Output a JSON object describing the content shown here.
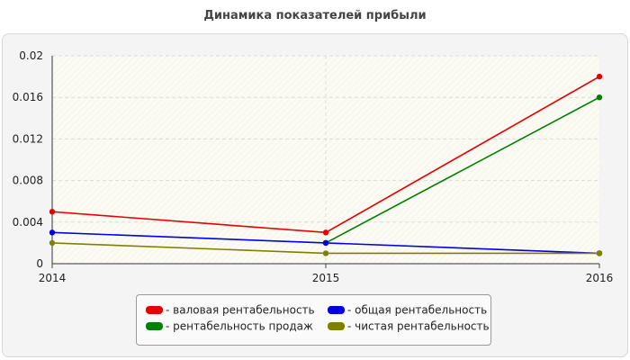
{
  "chart_data": {
    "type": "line",
    "title": "Динамика показателей прибыли",
    "xlabel": "",
    "ylabel": "",
    "categories": [
      "2014",
      "2015",
      "2016"
    ],
    "ylim": [
      0,
      0.02
    ],
    "yticks": [
      "0",
      "0.004",
      "0.008",
      "0.012",
      "0.016",
      "0.02"
    ],
    "grid": true,
    "legend_position": "bottom",
    "series": [
      {
        "name": "валовая рентабельность",
        "color": "#e60000",
        "values": [
          0.005,
          0.003,
          0.018
        ]
      },
      {
        "name": "рентабельность продаж",
        "color": "#008000",
        "values": [
          null,
          0.002,
          0.016
        ]
      },
      {
        "name": "общая рентабельность",
        "color": "#0000e6",
        "values": [
          0.003,
          0.002,
          0.001
        ]
      },
      {
        "name": "чистая рентабельность",
        "color": "#808000",
        "values": [
          0.002,
          0.001,
          0.001
        ]
      }
    ]
  },
  "legend": {
    "items": [
      {
        "label": "- валовая рентабельность",
        "color": "#e60000"
      },
      {
        "label": "- общая рентабельность",
        "color": "#0000e6"
      },
      {
        "label": "- рентабельность продаж",
        "color": "#008000"
      },
      {
        "label": "- чистая рентабельность",
        "color": "#808000"
      }
    ]
  }
}
